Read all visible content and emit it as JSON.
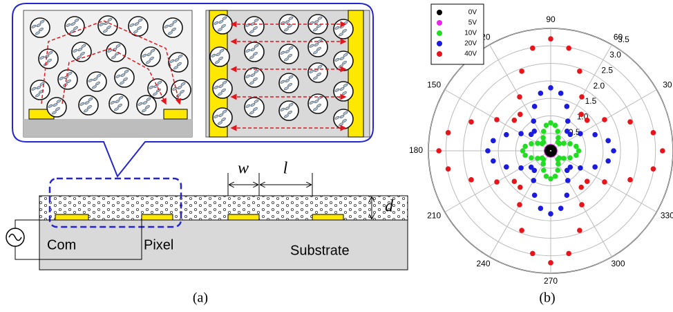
{
  "diagram": {
    "w": "w",
    "l": "l",
    "d": "d",
    "com": "Com",
    "pixel": "Pixel",
    "substrate": "Substrate"
  },
  "captions": [
    "(a)",
    "(b)"
  ],
  "chart_data": {
    "type": "polar",
    "theta": [
      0,
      10,
      20,
      30,
      40,
      50,
      60,
      70,
      80,
      90,
      100,
      110,
      120,
      130,
      140,
      150,
      160,
      170,
      180,
      190,
      200,
      210,
      220,
      230,
      240,
      250,
      260,
      270,
      280,
      290,
      300,
      310,
      320,
      330,
      340,
      350
    ],
    "series": [
      {
        "name": "40V",
        "color": "#e8141b",
        "values": [
          3.2,
          2.98,
          2.42,
          1.78,
          1.36,
          1.36,
          1.78,
          2.42,
          2.98,
          3.2,
          2.98,
          2.42,
          1.78,
          1.36,
          1.36,
          1.78,
          2.42,
          2.98,
          3.2,
          2.98,
          2.42,
          1.78,
          1.36,
          1.36,
          1.78,
          2.42,
          2.98,
          3.2,
          2.98,
          2.42,
          1.78,
          1.36,
          1.36,
          1.78,
          2.42,
          2.98
        ]
      },
      {
        "name": "20V",
        "color": "#1a1ae0",
        "values": [
          1.8,
          1.67,
          1.35,
          0.98,
          0.73,
          0.73,
          0.98,
          1.35,
          1.67,
          1.8,
          1.67,
          1.35,
          0.98,
          0.73,
          0.73,
          0.98,
          1.35,
          1.67,
          1.8,
          1.67,
          1.35,
          0.98,
          0.73,
          0.73,
          0.98,
          1.35,
          1.67,
          1.8,
          1.67,
          1.35,
          0.98,
          0.73,
          0.73,
          0.98,
          1.35,
          1.67
        ]
      },
      {
        "name": "10V",
        "color": "#22dd22",
        "values": [
          0.8,
          0.74,
          0.59,
          0.43,
          0.32,
          0.32,
          0.43,
          0.59,
          0.74,
          0.8,
          0.74,
          0.59,
          0.43,
          0.32,
          0.32,
          0.43,
          0.59,
          0.74,
          0.8,
          0.74,
          0.59,
          0.43,
          0.32,
          0.32,
          0.43,
          0.59,
          0.74,
          0.8,
          0.74,
          0.59,
          0.43,
          0.32,
          0.32,
          0.43,
          0.59,
          0.74
        ]
      },
      {
        "name": "5V",
        "color": "#ee22ee",
        "values": [
          0.12,
          0.12,
          0.12,
          0.12,
          0.12,
          0.12,
          0.12,
          0.12,
          0.12,
          0.12,
          0.12,
          0.12,
          0.12,
          0.12,
          0.12,
          0.12,
          0.12,
          0.12,
          0.12,
          0.12,
          0.12,
          0.12,
          0.12,
          0.12,
          0.12,
          0.12,
          0.12,
          0.12,
          0.12,
          0.12,
          0.12,
          0.12,
          0.12,
          0.12,
          0.12,
          0.12
        ]
      },
      {
        "name": "0V",
        "color": "#000000",
        "values": [
          0.1,
          0.1,
          0.1,
          0.1,
          0.1,
          0.1,
          0.1,
          0.1,
          0.1,
          0.1,
          0.1,
          0.1,
          0.1,
          0.1,
          0.1,
          0.1,
          0.1,
          0.1,
          0.1,
          0.1,
          0.1,
          0.1,
          0.1,
          0.1,
          0.1,
          0.1,
          0.1,
          0.1,
          0.1,
          0.1,
          0.1,
          0.1,
          0.1,
          0.1,
          0.1,
          0.1
        ]
      }
    ],
    "rlim": [
      0,
      3.5
    ],
    "rticks": [
      {
        "value": 0.5,
        "label": "0.5"
      },
      {
        "value": 1,
        "label": "1.0"
      },
      1.5,
      {
        "value": 2,
        "label": "2.0"
      },
      2.5,
      {
        "value": 3,
        "label": "3.0"
      },
      3.5
    ],
    "thetaticks": [
      30,
      60,
      90,
      120,
      150,
      180,
      210,
      240,
      270,
      300,
      330
    ],
    "grid": true,
    "legend": "upper left"
  }
}
